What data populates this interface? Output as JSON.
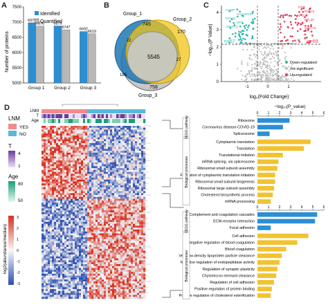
{
  "panels": {
    "a": "A",
    "b": "B",
    "c": "C",
    "d": "D"
  },
  "colors": {
    "identified": "#2b8fd4",
    "quantified": "#b8b8b8",
    "venn1": "#1f78b4",
    "venn2": "#f0c419",
    "venn3": "#888888",
    "down": "#2ab7a9",
    "up": "#e03c5a",
    "ns": "#bdbdbd",
    "kegg": "#2b8fd4",
    "bio": "#f2c230"
  },
  "panelA": {
    "ylabel": "Number of proteins",
    "legend": [
      "Identified",
      "Quantified"
    ],
    "chart_data": {
      "type": "bar",
      "categories": [
        "Group 1",
        "Group 2",
        "Group 3"
      ],
      "series": [
        {
          "name": "Identified",
          "values": [
            6979,
            6875,
            6692
          ]
        },
        {
          "name": "Quantified",
          "values": [
            6870,
            6747,
            6619
          ]
        }
      ],
      "ylim": [
        5000,
        7500
      ],
      "yticks": [
        5000,
        5500,
        6000,
        6500,
        7000,
        7500
      ]
    }
  },
  "panelB": {
    "labels": {
      "g1": "Group_1",
      "g2": "Group_2",
      "g3": "Group_3"
    },
    "regions": {
      "only1": "",
      "only2": "170",
      "only3": "758",
      "g1g2": "745",
      "g1g3": "186",
      "g2g3": "27",
      "all": "5545",
      "g12_small": "22",
      "g13_small": "27"
    }
  },
  "panelC": {
    "xlabel": "log₂(Fold Change)",
    "ylabel": "−log₁₀(P Value)",
    "xticks": [
      "-1",
      "0",
      "1"
    ],
    "yticks": [
      "0",
      "1",
      "2",
      "3",
      "4"
    ],
    "n_down": "n=57",
    "n_up": "n=69",
    "legend": [
      "Down-regulated",
      "not-significant",
      "Up-regulated"
    ],
    "down_labels": [
      "COMP",
      "CHCHD10",
      "MYH11",
      "DPT",
      "ANKRD1"
    ],
    "up_labels": [
      "TOP2",
      "RPS10",
      "RPS26",
      "RPL39",
      "PPIF",
      "SLC7A5"
    ]
  },
  "panelD": {
    "row_labels": [
      "LNM",
      "T",
      "Age"
    ],
    "legend": {
      "lnm_title": "LNM",
      "lnm_yes": "YES",
      "lnm_no": "NO",
      "t_title": "T",
      "t_hi": "4",
      "t_lo": "1",
      "age_title": "Age",
      "age_hi": "80",
      "age_lo": "50",
      "scale_title": "log2(abundance/median)",
      "scale_ticks": [
        "3",
        "2",
        "1",
        "0",
        "-1",
        "-2",
        "-3"
      ]
    }
  },
  "enrich": {
    "axis_title": "−log₁₀(P_value)",
    "xticks": [
      "0",
      "1",
      "2",
      "3",
      "4",
      "5",
      "6"
    ],
    "top": {
      "kegg_label": "KEGG pathway",
      "bio_label": "Biological processes",
      "kegg": [
        {
          "term": "Ribosome",
          "value": 2.9
        },
        {
          "term": "Coronavirus disease-COVID-19",
          "value": 2.3
        },
        {
          "term": "Spliceosome",
          "value": 1.1
        }
      ],
      "bio": [
        {
          "term": "Cytoplasmic translation",
          "value": 4.8
        },
        {
          "term": "Translation",
          "value": 4.2
        },
        {
          "term": "Translational initiation",
          "value": 2.3
        },
        {
          "term": "mRNA splicing, via spliceosome",
          "value": 1.9
        },
        {
          "term": "Ribosomal small subunit assembly",
          "value": 1.8
        },
        {
          "term": "Formation of cytoplasmic translation initiation",
          "value": 1.6
        },
        {
          "term": "Ribosomal small subunit biogenesis",
          "value": 1.6
        },
        {
          "term": "Ribosomal large subunit assembly",
          "value": 1.5
        },
        {
          "term": "Cholesterol biosynthetic process",
          "value": 1.4
        },
        {
          "term": "mRNA processing",
          "value": 1.2
        }
      ]
    },
    "bottom": {
      "kegg_label": "KEGG pathway",
      "bio_label": "Biological processes",
      "kegg": [
        {
          "term": "Complement and coagulation cascades",
          "value": 5.4
        },
        {
          "term": "ECM-receptor interaction",
          "value": 5.2
        },
        {
          "term": "Focal adhesion",
          "value": 1.2
        }
      ],
      "bio": [
        {
          "term": "Cell adhesion",
          "value": 4.6
        },
        {
          "term": "Negative regulation of blood coagulation",
          "value": 3.6
        },
        {
          "term": "Blood coagulation",
          "value": 2.6
        },
        {
          "term": "Very-low-density lipoprotein particle clearance",
          "value": 2.2
        },
        {
          "term": "Negative regulation of endopeptidase activity",
          "value": 2.0
        },
        {
          "term": "Regulation of synaptic plasticity",
          "value": 1.8
        },
        {
          "term": "Chylomicron remnant clearance",
          "value": 1.7
        },
        {
          "term": "Regulation of cell adhesion",
          "value": 1.5
        },
        {
          "term": "Positive regulation of protein binding",
          "value": 1.3
        },
        {
          "term": "Positive regulation of cholesterol esterification",
          "value": 1.2
        }
      ]
    }
  }
}
